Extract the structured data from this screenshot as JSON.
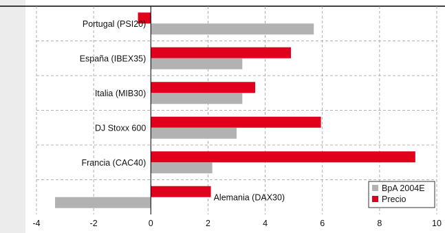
{
  "chart_data": {
    "type": "bar",
    "orientation": "horizontal",
    "categories": [
      "Portugal (PSI20)",
      "España (IBEX35)",
      "Italia (MIB30)",
      "DJ Stoxx 600",
      "Francia (CAC40)",
      "Alemania (DAX30)"
    ],
    "series": [
      {
        "name": "Precio",
        "color": "#e0001b",
        "values": [
          -0.45,
          4.9,
          3.65,
          5.95,
          9.25,
          2.1
        ]
      },
      {
        "name": "BpA 2004E",
        "color": "#b2b2b2",
        "values": [
          5.7,
          3.2,
          3.2,
          3.0,
          2.15,
          -3.35
        ]
      }
    ],
    "xlim": [
      -4,
      10
    ],
    "xticks": [
      "-4",
      "-2",
      "0",
      "2",
      "4",
      "6",
      "8",
      "10"
    ],
    "grid": true,
    "legend": {
      "position": "bottom-right",
      "items": [
        {
          "label": "BpA 2004E",
          "color": "#b2b2b2"
        },
        {
          "label": "Precio",
          "color": "#e0001b"
        }
      ]
    },
    "colors": {
      "background": "#ffffff",
      "plot_area": "#ffffff",
      "grid": "#9a9a9a",
      "top_rule": "#000000",
      "left_panel": "#ececec"
    }
  }
}
